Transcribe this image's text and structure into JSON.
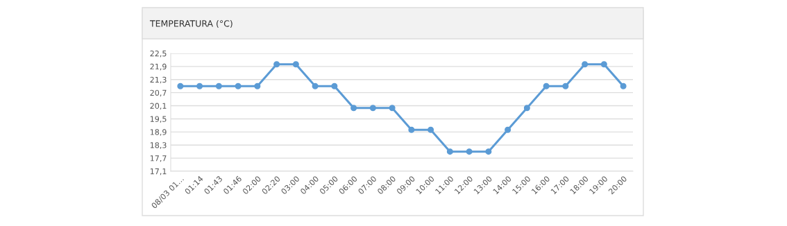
{
  "chart_data": {
    "type": "line",
    "title": "TEMPERATURA (°C)",
    "categories": [
      "08/03 01…",
      "01:14",
      "01:43",
      "01:46",
      "02:00",
      "02:20",
      "03:00",
      "04:00",
      "05:00",
      "06:00",
      "07:00",
      "08:00",
      "09:00",
      "10:00",
      "11:00",
      "12:00",
      "13:00",
      "14:00",
      "15:00",
      "16:00",
      "17:00",
      "18:00",
      "19:00",
      "20:00"
    ],
    "series": [
      {
        "color": "#5b9bd5",
        "values": [
          21,
          21,
          21,
          21,
          21,
          22,
          22,
          21,
          21,
          20,
          20,
          20,
          19,
          19,
          18,
          18,
          18,
          19,
          20,
          21,
          21,
          22,
          22,
          21
        ]
      }
    ],
    "ylim": [
      17.1,
      22.5
    ],
    "yticks": [
      {
        "value": 17.1,
        "label": "17,1"
      },
      {
        "value": 17.7,
        "label": "17,7"
      },
      {
        "value": 18.3,
        "label": "18,3"
      },
      {
        "value": 18.9,
        "label": "18,9"
      },
      {
        "value": 19.5,
        "label": "19,5"
      },
      {
        "value": 20.1,
        "label": "20,1"
      },
      {
        "value": 20.7,
        "label": "20,7"
      },
      {
        "value": 21.3,
        "label": "21,3"
      },
      {
        "value": 21.9,
        "label": "21,9"
      },
      {
        "value": 22.5,
        "label": "22,5"
      }
    ],
    "grid": "y",
    "marker": "circle",
    "line_style": "solid"
  }
}
